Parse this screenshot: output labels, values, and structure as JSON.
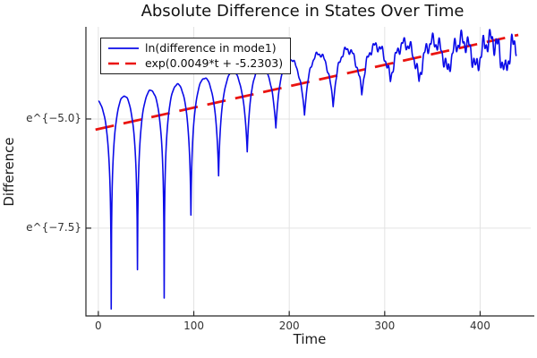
{
  "title": "Absolute Difference in States Over Time",
  "colors": {
    "background": "#ffffff",
    "grid": "#e3e3e3",
    "spine": "#262626",
    "tick_label": "#333333",
    "title_text": "#121212",
    "legend_border": "#1c1c1c"
  },
  "chart_data": {
    "type": "line",
    "title": "Absolute Difference in States Over Time",
    "xlabel": "Time",
    "ylabel": "Difference",
    "grid": true,
    "legend_position": "top-left",
    "x_axis": {
      "lim": [
        -13,
        453
      ],
      "ticks": [
        0,
        100,
        200,
        300,
        400
      ]
    },
    "y_axis": {
      "scale": "log-e",
      "lim_ln": [
        -9.51,
        -2.89
      ],
      "ticks": [
        {
          "value_ln": -5.0,
          "label": "e^{−5.0}"
        },
        {
          "value_ln": -7.5,
          "label": "e^{−7.5}"
        }
      ]
    },
    "series": [
      {
        "name": "ln(difference in mode1)",
        "style": "solid",
        "color": "#0b0be8",
        "line_width": 1.6,
        "model": "log-abs-oscillation",
        "t_start": 0,
        "t_end": 438,
        "cusp_minima_t_lnv": [
          [
            -15.0,
            -8.8
          ],
          [
            13.5,
            -9.35
          ],
          [
            41,
            -8.45
          ],
          [
            69,
            -9.1
          ],
          [
            97,
            -7.2
          ],
          [
            126,
            -6.3
          ],
          [
            156,
            -5.75
          ],
          [
            186,
            -5.2
          ],
          [
            216,
            -4.9
          ],
          [
            246,
            -4.7
          ],
          [
            276,
            -4.42
          ],
          [
            306,
            -4.12
          ],
          [
            336,
            -4.15
          ],
          [
            366,
            -3.95
          ],
          [
            396,
            -3.9
          ],
          [
            426,
            -3.98
          ],
          [
            456,
            -3.9
          ]
        ],
        "peak_envelope_t_lnv": [
          [
            0,
            -4.6
          ],
          [
            60,
            -4.32
          ],
          [
            120,
            -4.02
          ],
          [
            180,
            -3.72
          ],
          [
            240,
            -3.47
          ],
          [
            300,
            -3.3
          ],
          [
            360,
            -3.22
          ],
          [
            440,
            -3.18
          ]
        ],
        "ripple": {
          "amp_base": 0.012,
          "amp_max": 0.26,
          "onset_t": 130,
          "full_t": 440,
          "period1": 7.6,
          "period2": 3.3,
          "phase1": 1.2,
          "phase2": 0.4
        }
      },
      {
        "name": "exp(0.0049*t + -5.2303)",
        "style": "dashed",
        "color": "#ea1410",
        "line_width": 2.8,
        "dash": [
          21,
          11
        ],
        "model": "ln-linear",
        "slope": 0.0049,
        "intercept": -5.2303,
        "t_range": [
          -3,
          440
        ]
      }
    ]
  }
}
